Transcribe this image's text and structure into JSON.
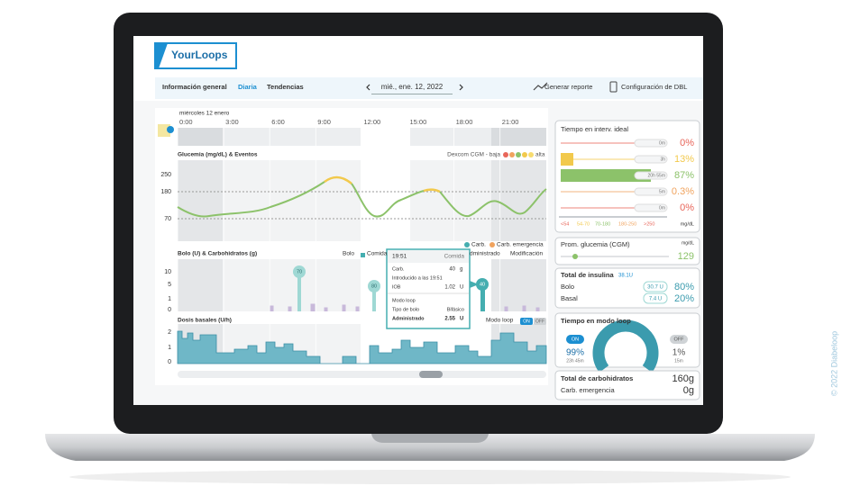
{
  "header": {
    "logo": "YourLoops"
  },
  "nav": {
    "tabs": [
      "Información general",
      "Diaria",
      "Tendencias"
    ],
    "date": "mié., ene. 12, 2022",
    "report": "Generar reporte",
    "settings": "Configuración de DBL"
  },
  "timeline": {
    "day": "miércoles 12 enero",
    "hours": [
      "0:00",
      "3:00",
      "6:00",
      "9:00",
      "12:00",
      "15:00",
      "18:00",
      "21:00"
    ]
  },
  "glucose": {
    "title": "Glucemia (mg/dL) & Eventos",
    "source": "Dexcom CGM - baja",
    "high": "alta",
    "ticks": [
      "250",
      "180",
      "70"
    ]
  },
  "bolus": {
    "title": "Bolo (U) & Carbohidratos (g)",
    "legend": [
      "Bolo",
      "Comida",
      "Carb.",
      "Carb. emergencia",
      "Modificación"
    ],
    "hidden_label": "dministrado",
    "ticks": [
      "10",
      "5",
      "1",
      "0"
    ],
    "bubbles": [
      "70",
      "80",
      "40"
    ]
  },
  "basal": {
    "title": "Dosis basales (U/h)",
    "loop": "Modo loop",
    "on": "ON",
    "off": "OFF",
    "ticks": [
      "2",
      "1",
      "0"
    ]
  },
  "tooltip": {
    "time": "19:51",
    "kind": "Comida",
    "carb_label": "Carb.",
    "carb_value": "40",
    "carb_unit": "g",
    "entered": "Introducido a las 19:51",
    "iob_label": "IOB",
    "iob_value": "1.02",
    "iob_unit": "U",
    "loop": "Modo loop",
    "type_label": "Tipo de bolo",
    "type_value": "Bifásico",
    "delivered_label": "Administrado",
    "delivered_value": "2.55",
    "delivered_unit": "U"
  },
  "tir": {
    "title": "Tiempo en interv. ideal",
    "rows": [
      {
        "duration": "0m",
        "percent": "0%"
      },
      {
        "duration": "3h",
        "percent": "13%"
      },
      {
        "duration": "20h 55m",
        "percent": "87%"
      },
      {
        "duration": "5m",
        "percent": "0.3%"
      },
      {
        "duration": "0m",
        "percent": "0%"
      }
    ],
    "ranges": [
      "<54",
      "54-70",
      "70-180",
      "180-250",
      ">250"
    ],
    "unit": "mg/dL"
  },
  "avg": {
    "title": "Prom. glucemia (CGM)",
    "unit": "mg/dL",
    "value": "129"
  },
  "insulin": {
    "title": "Total de insulina",
    "total": "38.1U",
    "bolus_label": "Bolo",
    "bolus_amount": "30.7 U",
    "bolus_percent": "80%",
    "basal_label": "Basal",
    "basal_amount": "7.4 U",
    "basal_percent": "20%"
  },
  "loop": {
    "title": "Tiempo en modo loop",
    "on": "ON",
    "on_percent": "99%",
    "on_duration": "23h 45m",
    "off": "OFF",
    "off_percent": "1%",
    "off_duration": "15m"
  },
  "carbs": {
    "title": "Total de carbohidratos",
    "total": "160g",
    "emergency_label": "Carb. emergencia",
    "emergency_value": "0g"
  },
  "copyright": "© 2022 Diabeloop"
}
